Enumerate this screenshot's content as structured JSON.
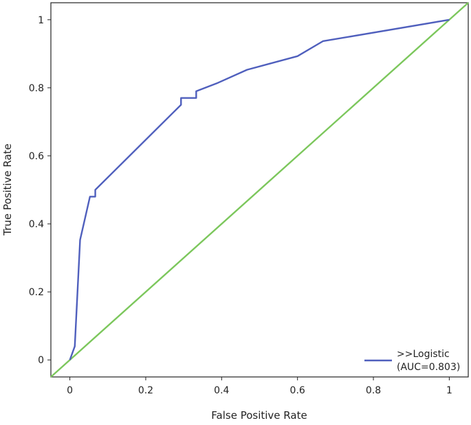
{
  "chart_data": {
    "type": "line",
    "title": "",
    "xlabel": "False Positive Rate",
    "ylabel": "True Positive Rate",
    "xlim": [
      -0.05,
      1.05
    ],
    "ylim": [
      -0.05,
      1.05
    ],
    "xticks": [
      0,
      0.2,
      0.4,
      0.6,
      0.8,
      1
    ],
    "yticks": [
      0,
      0.2,
      0.4,
      0.6,
      0.8,
      1
    ],
    "tick_labels_x": [
      "0",
      "0.2",
      "0.4",
      "0.6",
      "0.8",
      "1"
    ],
    "tick_labels_y": [
      "0",
      "0.2",
      "0.4",
      "0.6",
      "0.8",
      "1"
    ],
    "grid": false,
    "legend_position": "bottom-right",
    "legend": {
      "label_line1": ">>Logistic",
      "label_line2": "(AUC=0.803)"
    },
    "series": [
      {
        "label": ">>Logistic",
        "color": "#4f5fbd",
        "x": [
          0,
          0.013,
          0.027,
          0.053,
          0.067,
          0.067,
          0.293,
          0.293,
          0.333,
          0.333,
          0.387,
          0.467,
          0.6,
          0.667,
          1.0
        ],
        "y": [
          0,
          0.04,
          0.353,
          0.48,
          0.48,
          0.5,
          0.75,
          0.77,
          0.77,
          0.79,
          0.813,
          0.853,
          0.893,
          0.937,
          1.0
        ]
      },
      {
        "label": "",
        "color": "#7cc75c",
        "x": [
          -0.05,
          1.05
        ],
        "y": [
          -0.05,
          1.05
        ]
      }
    ]
  }
}
